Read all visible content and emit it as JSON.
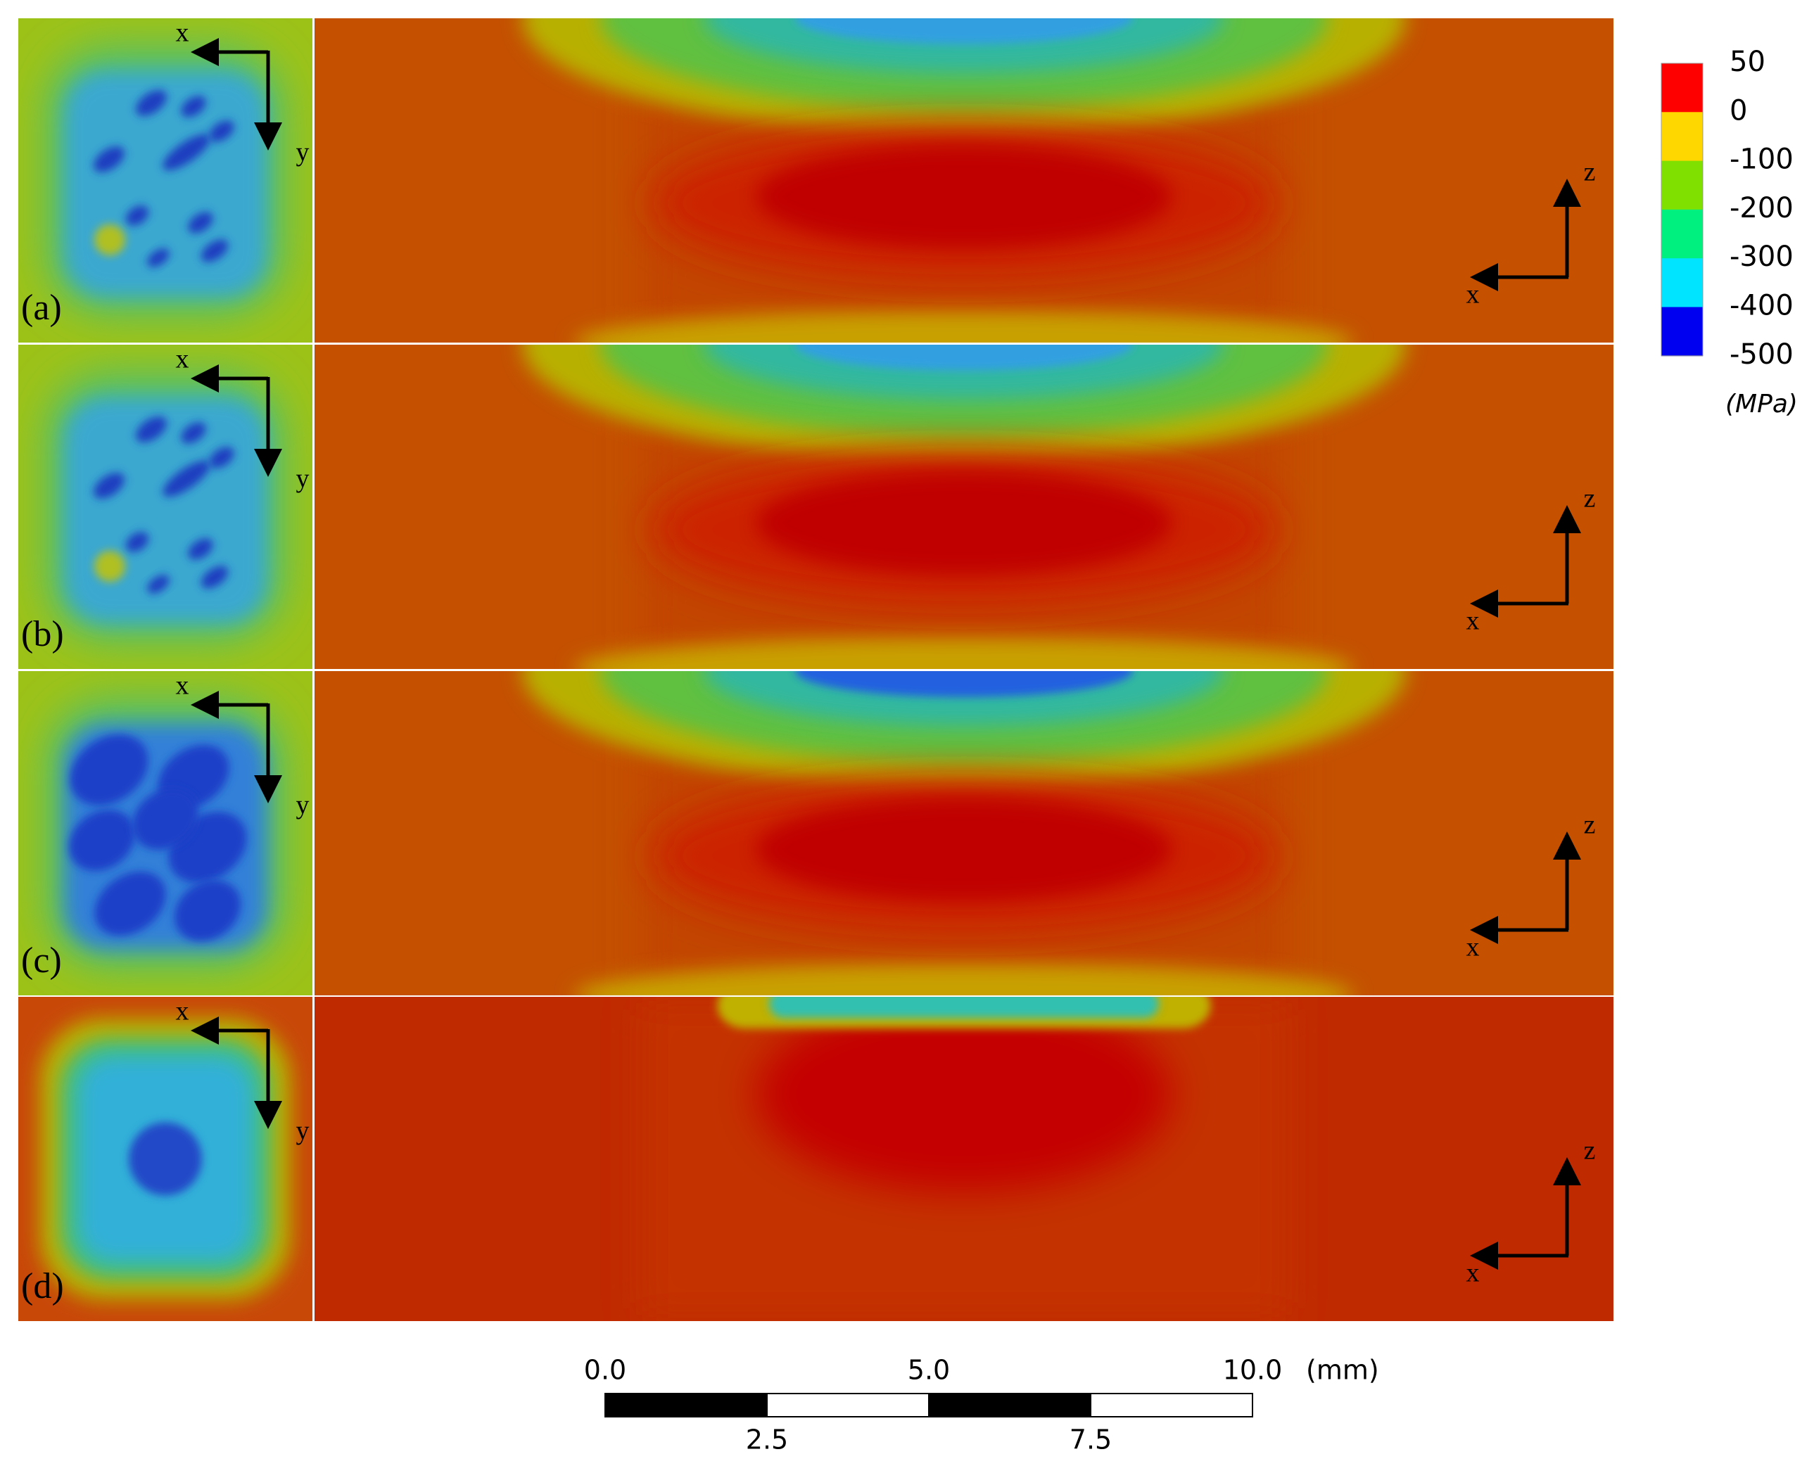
{
  "panels": [
    {
      "label": "(a)",
      "plan_axes": [
        "x",
        "y"
      ],
      "section_axes": [
        "z",
        "x"
      ]
    },
    {
      "label": "(b)",
      "plan_axes": [
        "x",
        "y"
      ],
      "section_axes": [
        "z",
        "x"
      ]
    },
    {
      "label": "(c)",
      "plan_axes": [
        "x",
        "y"
      ],
      "section_axes": [
        "z",
        "x"
      ]
    },
    {
      "label": "(d)",
      "plan_axes": [
        "x",
        "y"
      ],
      "section_axes": [
        "z",
        "x"
      ]
    }
  ],
  "colorbar": {
    "labels": [
      "50",
      "0",
      "-100",
      "-200",
      "-300",
      "-400",
      "-500"
    ],
    "colors": [
      "#ff0000",
      "#ffd700",
      "#80e000",
      "#00f080",
      "#00e4ff",
      "#0000f0"
    ],
    "unit": "(MPa)"
  },
  "scale_bar": {
    "top_labels": [
      "0.0",
      "5.0",
      "10.0"
    ],
    "bottom_labels": [
      "2.5",
      "7.5"
    ],
    "unit": "(mm)"
  }
}
